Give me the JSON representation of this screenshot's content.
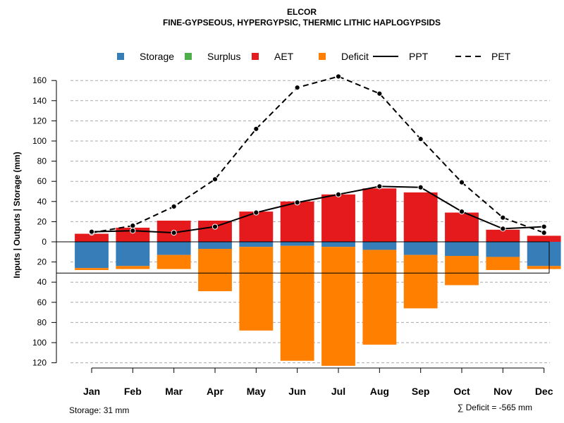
{
  "chart_data": {
    "type": "bar",
    "title": "ELCOR",
    "subtitle": "FINE-GYPSEOUS, HYPERGYPSIC, THERMIC LITHIC HAPLOGYPSIDS",
    "ylabel": "Inputs | Outputs | Storage    (mm)",
    "ylim": [
      -120,
      170
    ],
    "yticks": [
      160,
      140,
      120,
      100,
      80,
      60,
      40,
      20,
      0,
      -20,
      -40,
      -60,
      -80,
      -100,
      -120
    ],
    "ytick_labels": [
      "160",
      "140",
      "120",
      "100",
      "80",
      "60",
      "40",
      "20",
      "0",
      "20",
      "40",
      "60",
      "80",
      "100",
      "120"
    ],
    "categories": [
      "Jan",
      "Feb",
      "Mar",
      "Apr",
      "May",
      "Jun",
      "Jul",
      "Aug",
      "Sep",
      "Oct",
      "Nov",
      "Dec"
    ],
    "grid": true,
    "legend_position": "top",
    "legend": [
      {
        "label": "Storage",
        "kind": "box",
        "color": "#377EB8"
      },
      {
        "label": "Surplus",
        "kind": "box",
        "color": "#4DAF4A"
      },
      {
        "label": "AET",
        "kind": "box",
        "color": "#E41A1C"
      },
      {
        "label": "Deficit",
        "kind": "box",
        "color": "#FF7F00"
      },
      {
        "label": "PPT",
        "kind": "line",
        "color": "#000000"
      },
      {
        "label": "PET",
        "kind": "dashed",
        "color": "#000000"
      }
    ],
    "series": [
      {
        "name": "AET",
        "color": "#E41A1C",
        "values": [
          8,
          14,
          21,
          21,
          30,
          40,
          47,
          53,
          49,
          29,
          12,
          6
        ]
      },
      {
        "name": "Storage",
        "color": "#377EB8",
        "values": [
          -26,
          -24,
          -13,
          -7,
          -5,
          -4,
          -5,
          -8,
          -13,
          -14,
          -15,
          -24
        ]
      },
      {
        "name": "Deficit",
        "color": "#FF7F00",
        "values": [
          -2,
          -3,
          -14,
          -42,
          -83,
          -114,
          -118,
          -94,
          -53,
          -29,
          -13,
          -3
        ]
      },
      {
        "name": "PPT",
        "color": "#000000",
        "values": [
          10,
          11,
          9,
          15,
          29,
          39,
          47,
          55,
          54,
          30,
          13,
          15
        ]
      },
      {
        "name": "PET",
        "color": "#000000",
        "values": [
          9,
          16,
          35,
          62,
          112,
          153,
          164,
          147,
          102,
          59,
          24,
          9
        ]
      }
    ],
    "storage_capacity": -31,
    "storage_note": "Storage: 31 mm",
    "deficit_note": "∑ Deficit = -565 mm"
  }
}
